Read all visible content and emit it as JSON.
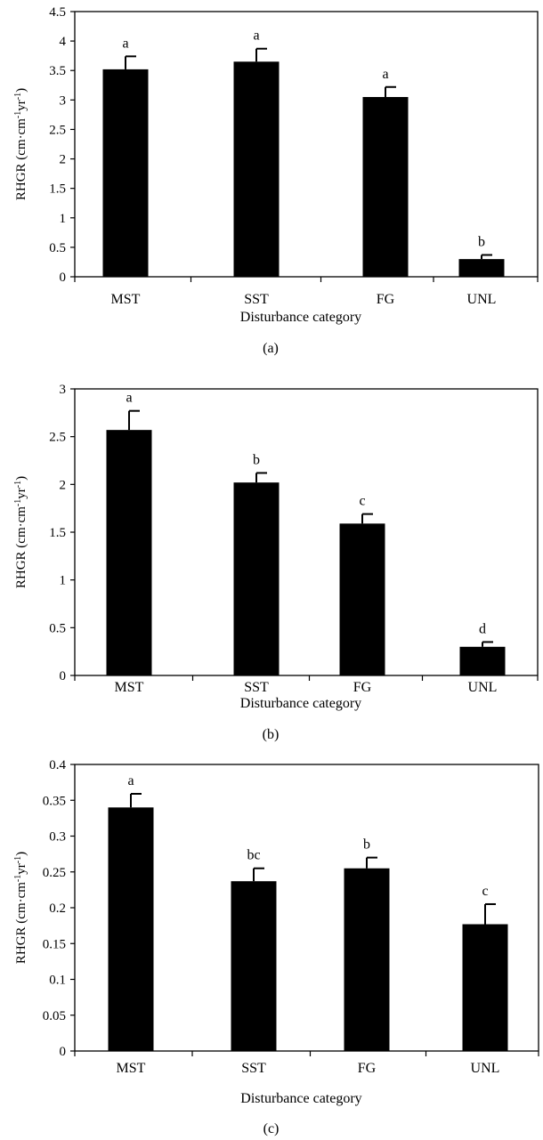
{
  "chart_data": [
    {
      "type": "bar",
      "panel_label": "(a)",
      "categories": [
        "MST",
        "SST",
        "FG",
        "UNL"
      ],
      "values": [
        3.52,
        3.65,
        3.05,
        0.3
      ],
      "errors": [
        0.22,
        0.22,
        0.17,
        0.07
      ],
      "letters": [
        "a",
        "a",
        "a",
        "b"
      ],
      "xlabel": "Disturbance category",
      "ylabel_main": "RHGR (cm·cm",
      "ylabel_sup1": "-1",
      "ylabel_mid": "yr",
      "ylabel_sup2": "-1",
      "ylabel_end": ")",
      "ylim": [
        0,
        4.5
      ],
      "yticks": [
        "0",
        "0.5",
        "1",
        "1.5",
        "2",
        "2.5",
        "3",
        "3.5",
        "4",
        "4.5"
      ],
      "grid": false
    },
    {
      "type": "bar",
      "panel_label": "(b)",
      "categories": [
        "MST",
        "SST",
        "FG",
        "UNL"
      ],
      "values": [
        2.57,
        2.02,
        1.59,
        0.3
      ],
      "errors": [
        0.2,
        0.1,
        0.1,
        0.05
      ],
      "letters": [
        "a",
        "b",
        "c",
        "d"
      ],
      "xlabel": "Disturbance category",
      "ylabel_main": "RHGR (cm·cm",
      "ylabel_sup1": "-1",
      "ylabel_mid": "yr",
      "ylabel_sup2": "-1",
      "ylabel_end": ")",
      "ylim": [
        0,
        3
      ],
      "yticks": [
        "0",
        "0.5",
        "1",
        "1.5",
        "2",
        "2.5",
        "3"
      ],
      "grid": false
    },
    {
      "type": "bar",
      "panel_label": "(c)",
      "categories": [
        "MST",
        "SST",
        "FG",
        "UNL"
      ],
      "values": [
        0.34,
        0.237,
        0.255,
        0.177
      ],
      "errors": [
        0.019,
        0.018,
        0.015,
        0.028
      ],
      "letters": [
        "a",
        "bc",
        "b",
        "c"
      ],
      "xlabel": "Disturbance category",
      "ylabel_main": "RHGR (cm·cm",
      "ylabel_sup1": "-1",
      "ylabel_mid": "yr",
      "ylabel_sup2": "-1",
      "ylabel_end": ")",
      "ylim": [
        0,
        0.4
      ],
      "yticks": [
        "0",
        "0.05",
        "0.1",
        "0.15",
        "0.2",
        "0.25",
        "0.3",
        "0.35",
        "0.4"
      ],
      "grid": false
    }
  ]
}
